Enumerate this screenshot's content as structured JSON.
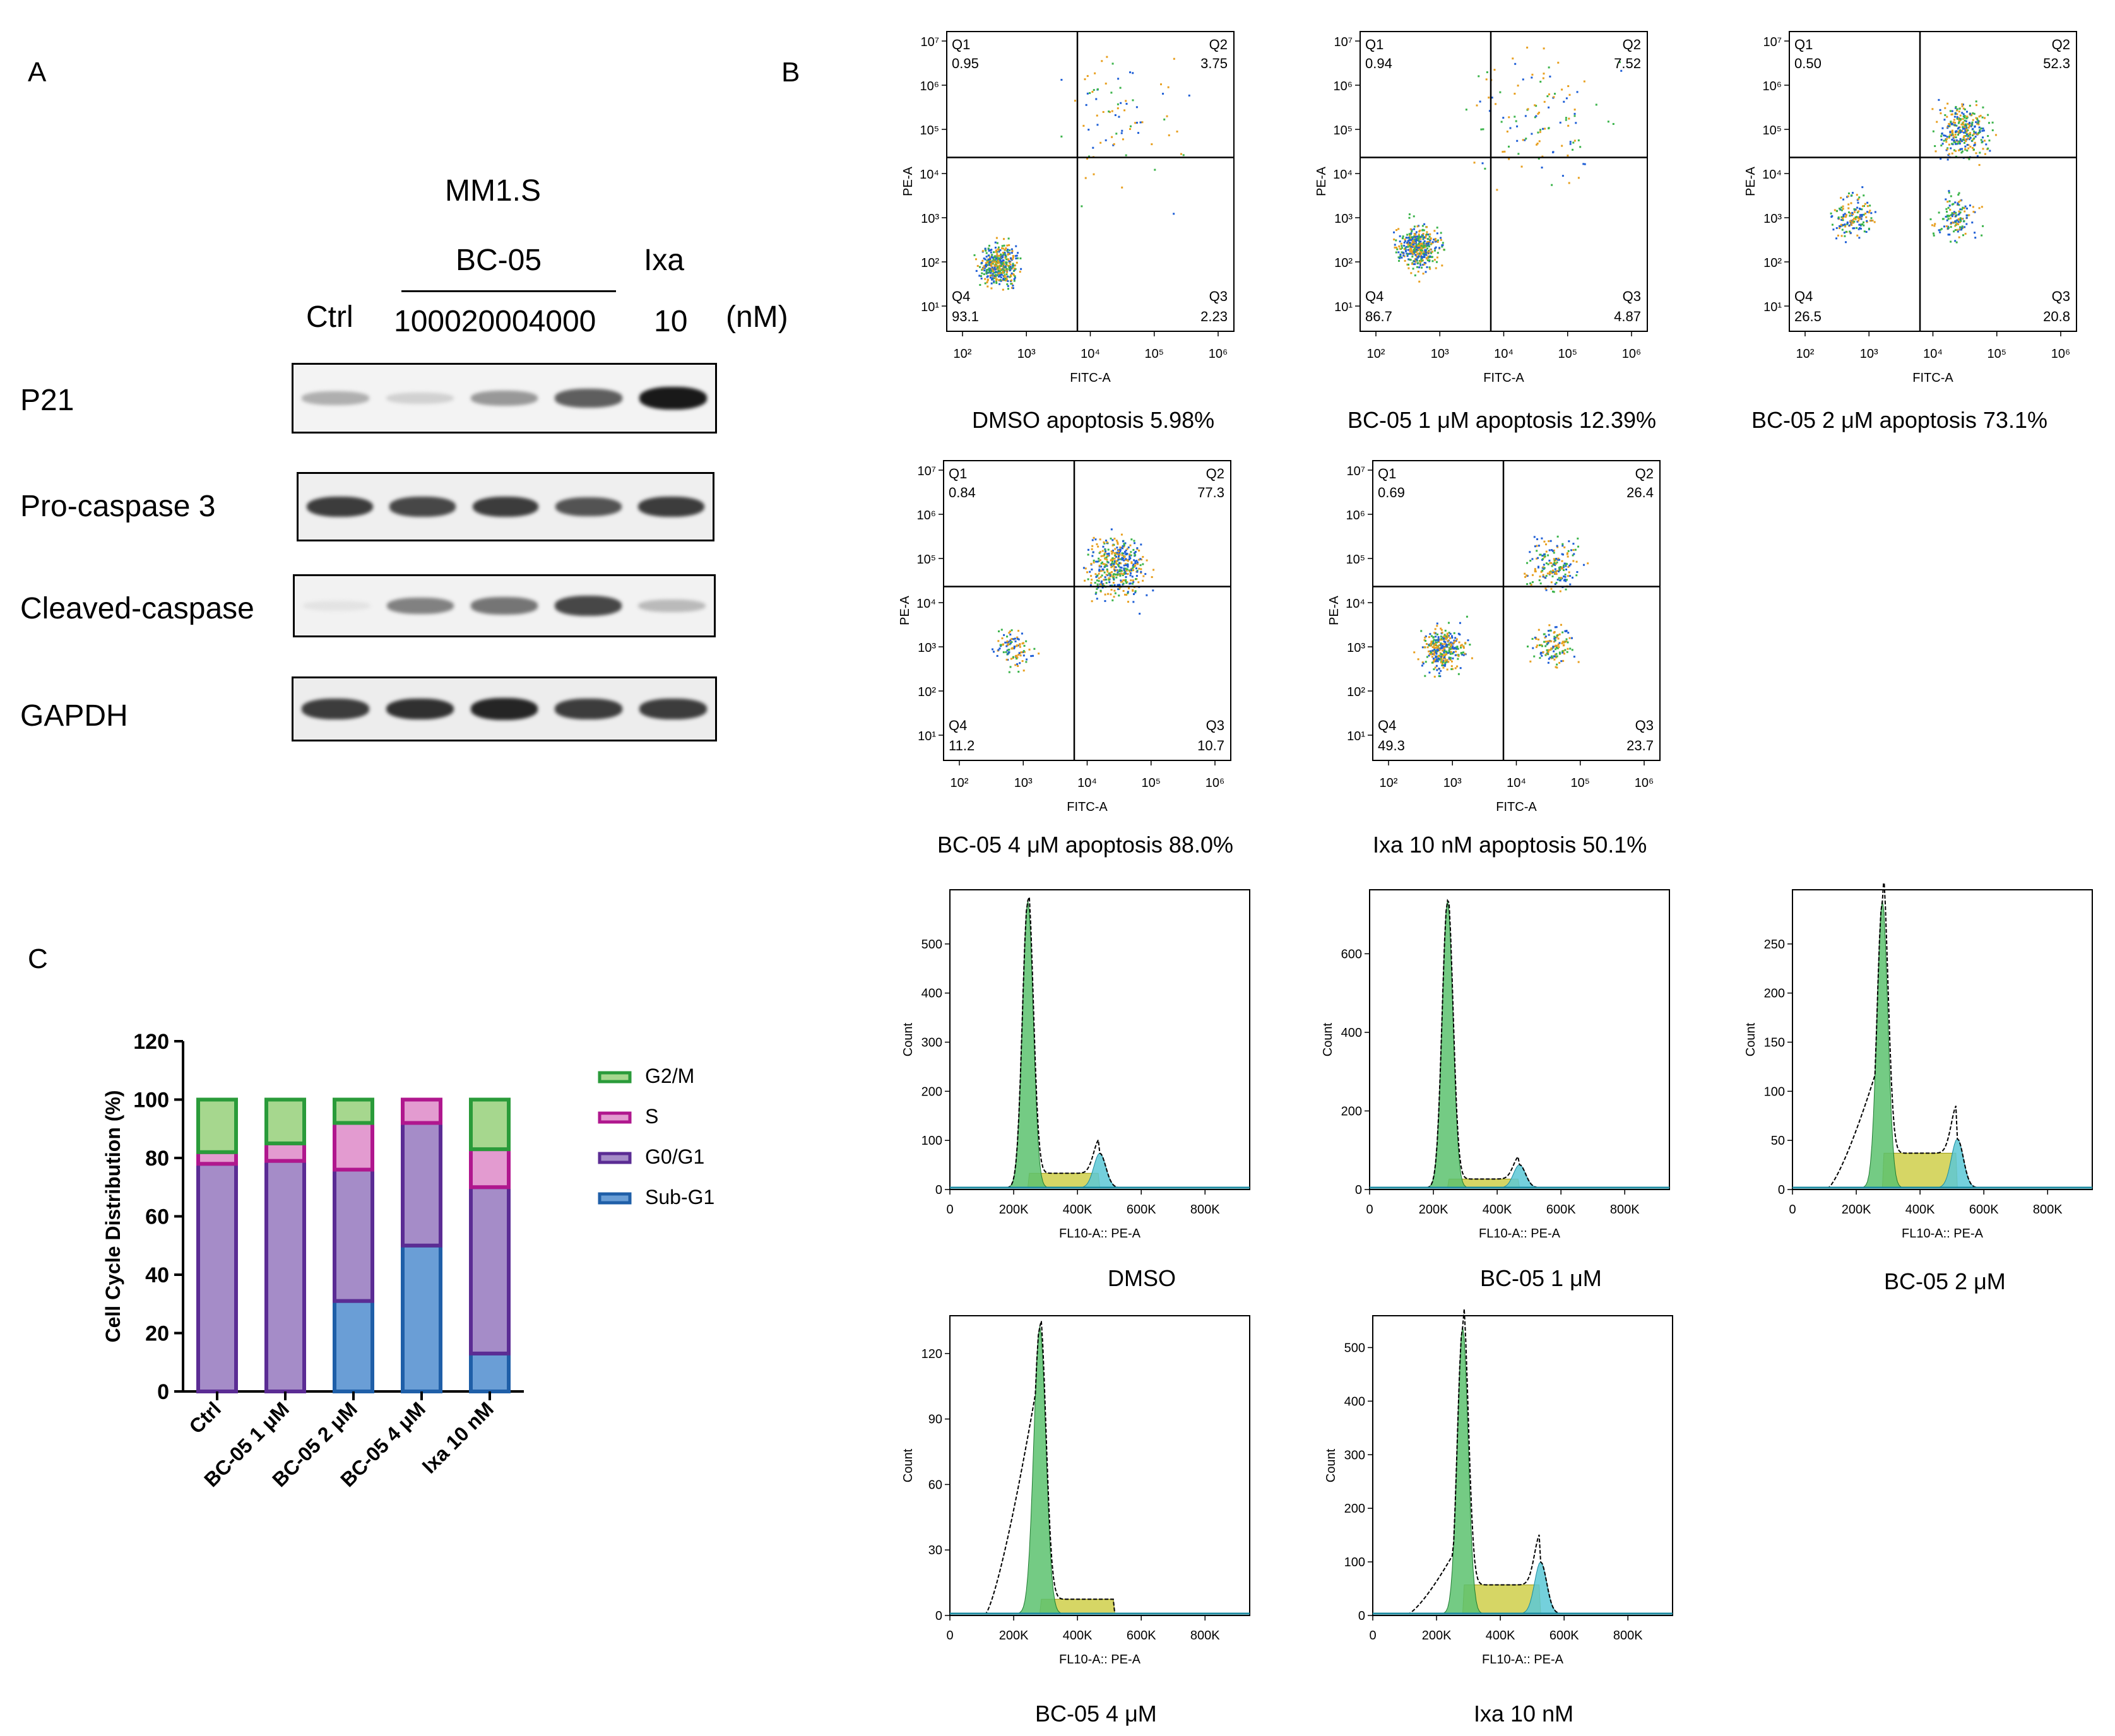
{
  "panels": {
    "a": "A",
    "b": "B",
    "c": "C"
  },
  "western": {
    "cell_line": "MM1.S",
    "drug1": "BC-05",
    "drug2": "Ixa",
    "ctrl": "Ctrl",
    "doses1": "100020004000",
    "dose2": "10",
    "unit": "(nM)",
    "rows": [
      {
        "label": "P21",
        "bands": [
          0.35,
          0.2,
          0.45,
          0.7,
          1.0
        ]
      },
      {
        "label": "Pro-caspase 3",
        "bands": [
          0.85,
          0.8,
          0.85,
          0.75,
          0.85
        ]
      },
      {
        "label": "Cleaved-caspase",
        "bands": [
          0.12,
          0.55,
          0.6,
          0.8,
          0.3
        ]
      },
      {
        "label": "GAPDH",
        "bands": [
          0.85,
          0.9,
          0.95,
          0.85,
          0.85
        ]
      }
    ]
  },
  "flow_axes": {
    "x_label": "FITC-A",
    "y_label": "PE-A",
    "x_ticks": [
      "10²",
      "10³",
      "10⁴",
      "10⁵",
      "10⁶"
    ],
    "y_ticks": [
      "10¹",
      "10²",
      "10³",
      "10⁴",
      "10⁵",
      "10⁶",
      "10⁷"
    ],
    "quadrants": [
      "Q1",
      "Q2",
      "Q3",
      "Q4"
    ]
  },
  "apoptosis_plots": [
    {
      "caption": "DMSO apoptosis 5.98%",
      "q1": "0.95",
      "q2": "3.75",
      "q3": "2.23",
      "q4": "93.1"
    },
    {
      "caption": "BC-05 1 μM apoptosis 12.39%",
      "q1": "0.94",
      "q2": "7.52",
      "q3": "4.87",
      "q4": "86.7"
    },
    {
      "caption": "BC-05 2 μM apoptosis 73.1%",
      "q1": "0.50",
      "q2": "52.3",
      "q3": "20.8",
      "q4": "26.5"
    },
    {
      "caption": "BC-05 4 μM apoptosis 88.0%",
      "q1": "0.84",
      "q2": "77.3",
      "q3": "10.7",
      "q4": "11.2"
    },
    {
      "caption": "Ixa 10 nM apoptosis 50.1%",
      "q1": "0.69",
      "q2": "26.4",
      "q3": "23.7",
      "q4": "49.3"
    }
  ],
  "cycle_axes": {
    "x_label": "FL10-A:: PE-A",
    "y_label": "Count",
    "x_ticks": [
      "0",
      "200K",
      "400K",
      "600K",
      "800K"
    ]
  },
  "cycle_plots": [
    {
      "caption": "DMSO",
      "y_ticks": [
        "0",
        "100",
        "200",
        "300",
        "400",
        "500"
      ],
      "ymax": 600
    },
    {
      "caption": "BC-05 1 μM",
      "y_ticks": [
        "0",
        "200",
        "400",
        "600"
      ],
      "ymax": 750
    },
    {
      "caption": "BC-05 2 μM",
      "y_ticks": [
        "0",
        "50",
        "100",
        "150",
        "200",
        "250"
      ],
      "ymax": 300
    },
    {
      "caption": "BC-05 4 μM",
      "y_ticks": [
        "0",
        "30",
        "60",
        "90",
        "120"
      ],
      "ymax": 135
    },
    {
      "caption": "Ixa 10 nM",
      "y_ticks": [
        "0",
        "100",
        "200",
        "300",
        "400",
        "500"
      ],
      "ymax": 550
    }
  ],
  "chart_data": {
    "type": "bar",
    "stacked": true,
    "ylabel": "Cell Cycle Distribution (%)",
    "ylim": [
      0,
      120
    ],
    "y_ticks": [
      "0",
      "20",
      "40",
      "60",
      "80",
      "100",
      "120"
    ],
    "categories": [
      "Ctrl",
      "BC-05 1 μM",
      "BC-05 2 μM",
      "BC-05 4 μM",
      "Ixa 10 nM"
    ],
    "series": [
      {
        "name": "Sub-G1",
        "values": [
          0,
          0,
          31,
          50,
          13
        ],
        "color": "#6a9ed6",
        "edge": "#1f5fa8"
      },
      {
        "name": "G0/G1",
        "values": [
          78,
          79,
          45,
          42,
          57
        ],
        "color": "#a58cc8",
        "edge": "#5b2c94"
      },
      {
        "name": "S",
        "values": [
          4,
          6,
          16,
          8,
          13
        ],
        "color": "#e39bd0",
        "edge": "#b0178e"
      },
      {
        "name": "G2/M",
        "values": [
          18,
          15,
          8,
          0,
          17
        ],
        "color": "#a6d78e",
        "edge": "#2a9b3a"
      }
    ],
    "legend": [
      "G2/M",
      "S",
      "G0/G1",
      "Sub-G1"
    ],
    "legend_position": "right"
  }
}
